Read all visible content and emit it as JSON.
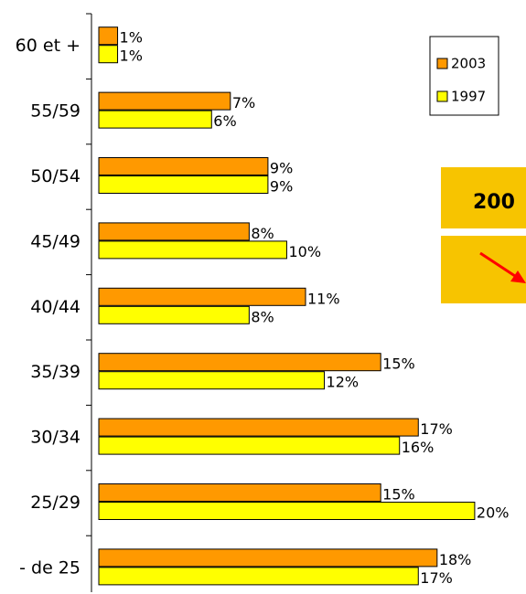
{
  "chart_data": {
    "type": "bar",
    "orientation": "horizontal",
    "categories": [
      "60 et +",
      "55/59",
      "50/54",
      "45/49",
      "40/44",
      "35/39",
      "30/34",
      "25/29",
      "- de 25"
    ],
    "series": [
      {
        "name": "2003",
        "color": "#ff9900",
        "values": [
          1,
          7,
          9,
          8,
          11,
          15,
          17,
          15,
          18
        ],
        "value_labels": [
          "1%",
          "7%",
          "9%",
          "8%",
          "11%",
          "15%",
          "17%",
          "15%",
          "18%"
        ]
      },
      {
        "name": "1997",
        "color": "#ffff00",
        "values": [
          1,
          6,
          9,
          10,
          8,
          12,
          16,
          20,
          17
        ],
        "value_labels": [
          "1%",
          "6%",
          "9%",
          "10%",
          "8%",
          "12%",
          "16%",
          "20%",
          "17%"
        ]
      }
    ],
    "xlim": [
      0,
      22
    ],
    "legend": "upper right",
    "annotations": [
      "200"
    ]
  }
}
